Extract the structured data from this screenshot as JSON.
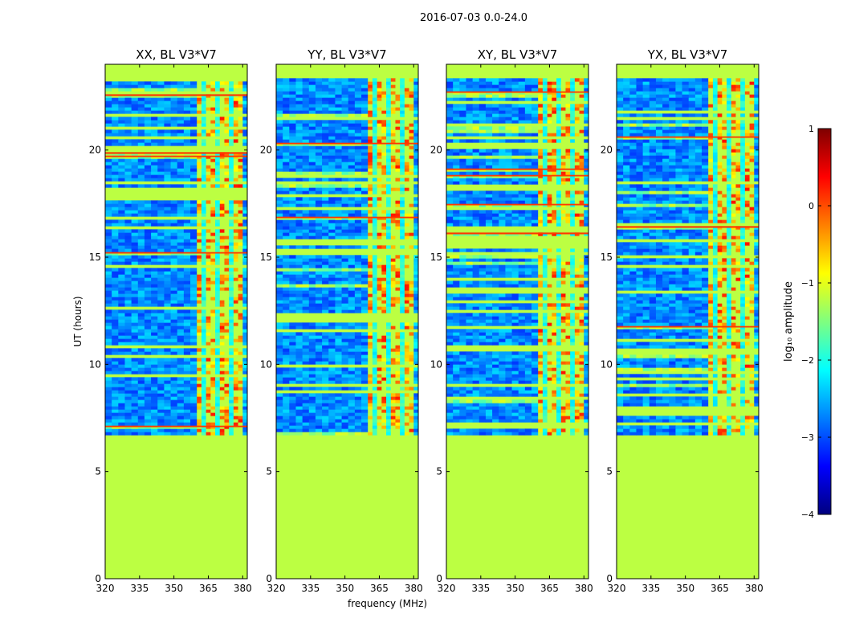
{
  "figure_title": "2016-07-03 0.0-24.0",
  "colormap": [
    "#00007f",
    "#0000ff",
    "#007fff",
    "#00ffff",
    "#7fff7f",
    "#ffff00",
    "#ff7f00",
    "#ff0000",
    "#7f0000"
  ],
  "chart_data": [
    {
      "type": "heatmap",
      "title": "XX, BL V3*V7",
      "xlabel": "",
      "ylabel": "UT (hours)",
      "xlim": [
        320,
        382
      ],
      "ylim": [
        0,
        24
      ],
      "xticks": [
        "320",
        "335",
        "350",
        "365",
        "380"
      ],
      "yticks": [
        "0",
        "5",
        "10",
        "15",
        "20"
      ],
      "data_start_hour": 6.7,
      "data_end_hour": 23.3,
      "rfi_band_mhz": [
        360,
        380
      ],
      "fill_value_log10": -1.2
    },
    {
      "type": "heatmap",
      "title": "YY, BL V3*V7",
      "xlabel": "frequency (MHz)",
      "ylabel": "",
      "xlim": [
        320,
        382
      ],
      "ylim": [
        0,
        24
      ],
      "xticks": [
        "320",
        "335",
        "350",
        "365",
        "380"
      ],
      "yticks": [
        "0",
        "5",
        "10",
        "15",
        "20"
      ],
      "data_start_hour": 6.7,
      "data_end_hour": 23.3,
      "rfi_band_mhz": [
        360,
        380
      ],
      "fill_value_log10": -1.2
    },
    {
      "type": "heatmap",
      "title": "XY, BL V3*V7",
      "xlabel": "",
      "ylabel": "",
      "xlim": [
        320,
        382
      ],
      "ylim": [
        0,
        24
      ],
      "xticks": [
        "320",
        "335",
        "350",
        "365",
        "380"
      ],
      "yticks": [
        "0",
        "5",
        "10",
        "15",
        "20"
      ],
      "data_start_hour": 6.7,
      "data_end_hour": 23.3,
      "rfi_band_mhz": [
        360,
        380
      ],
      "fill_value_log10": -1.2
    },
    {
      "type": "heatmap",
      "title": "YX, BL V3*V7",
      "xlabel": "",
      "ylabel": "",
      "xlim": [
        320,
        382
      ],
      "ylim": [
        0,
        24
      ],
      "xticks": [
        "320",
        "335",
        "350",
        "365",
        "380"
      ],
      "yticks": [
        "0",
        "5",
        "10",
        "15",
        "20"
      ],
      "data_start_hour": 6.7,
      "data_end_hour": 23.3,
      "rfi_band_mhz": [
        360,
        380
      ],
      "fill_value_log10": -1.2
    }
  ],
  "colorbar": {
    "label": "log₁₀ amplitude",
    "range": [
      -4,
      1
    ],
    "ticks": [
      "1",
      "0",
      "−1",
      "−2",
      "−3",
      "−4"
    ]
  }
}
